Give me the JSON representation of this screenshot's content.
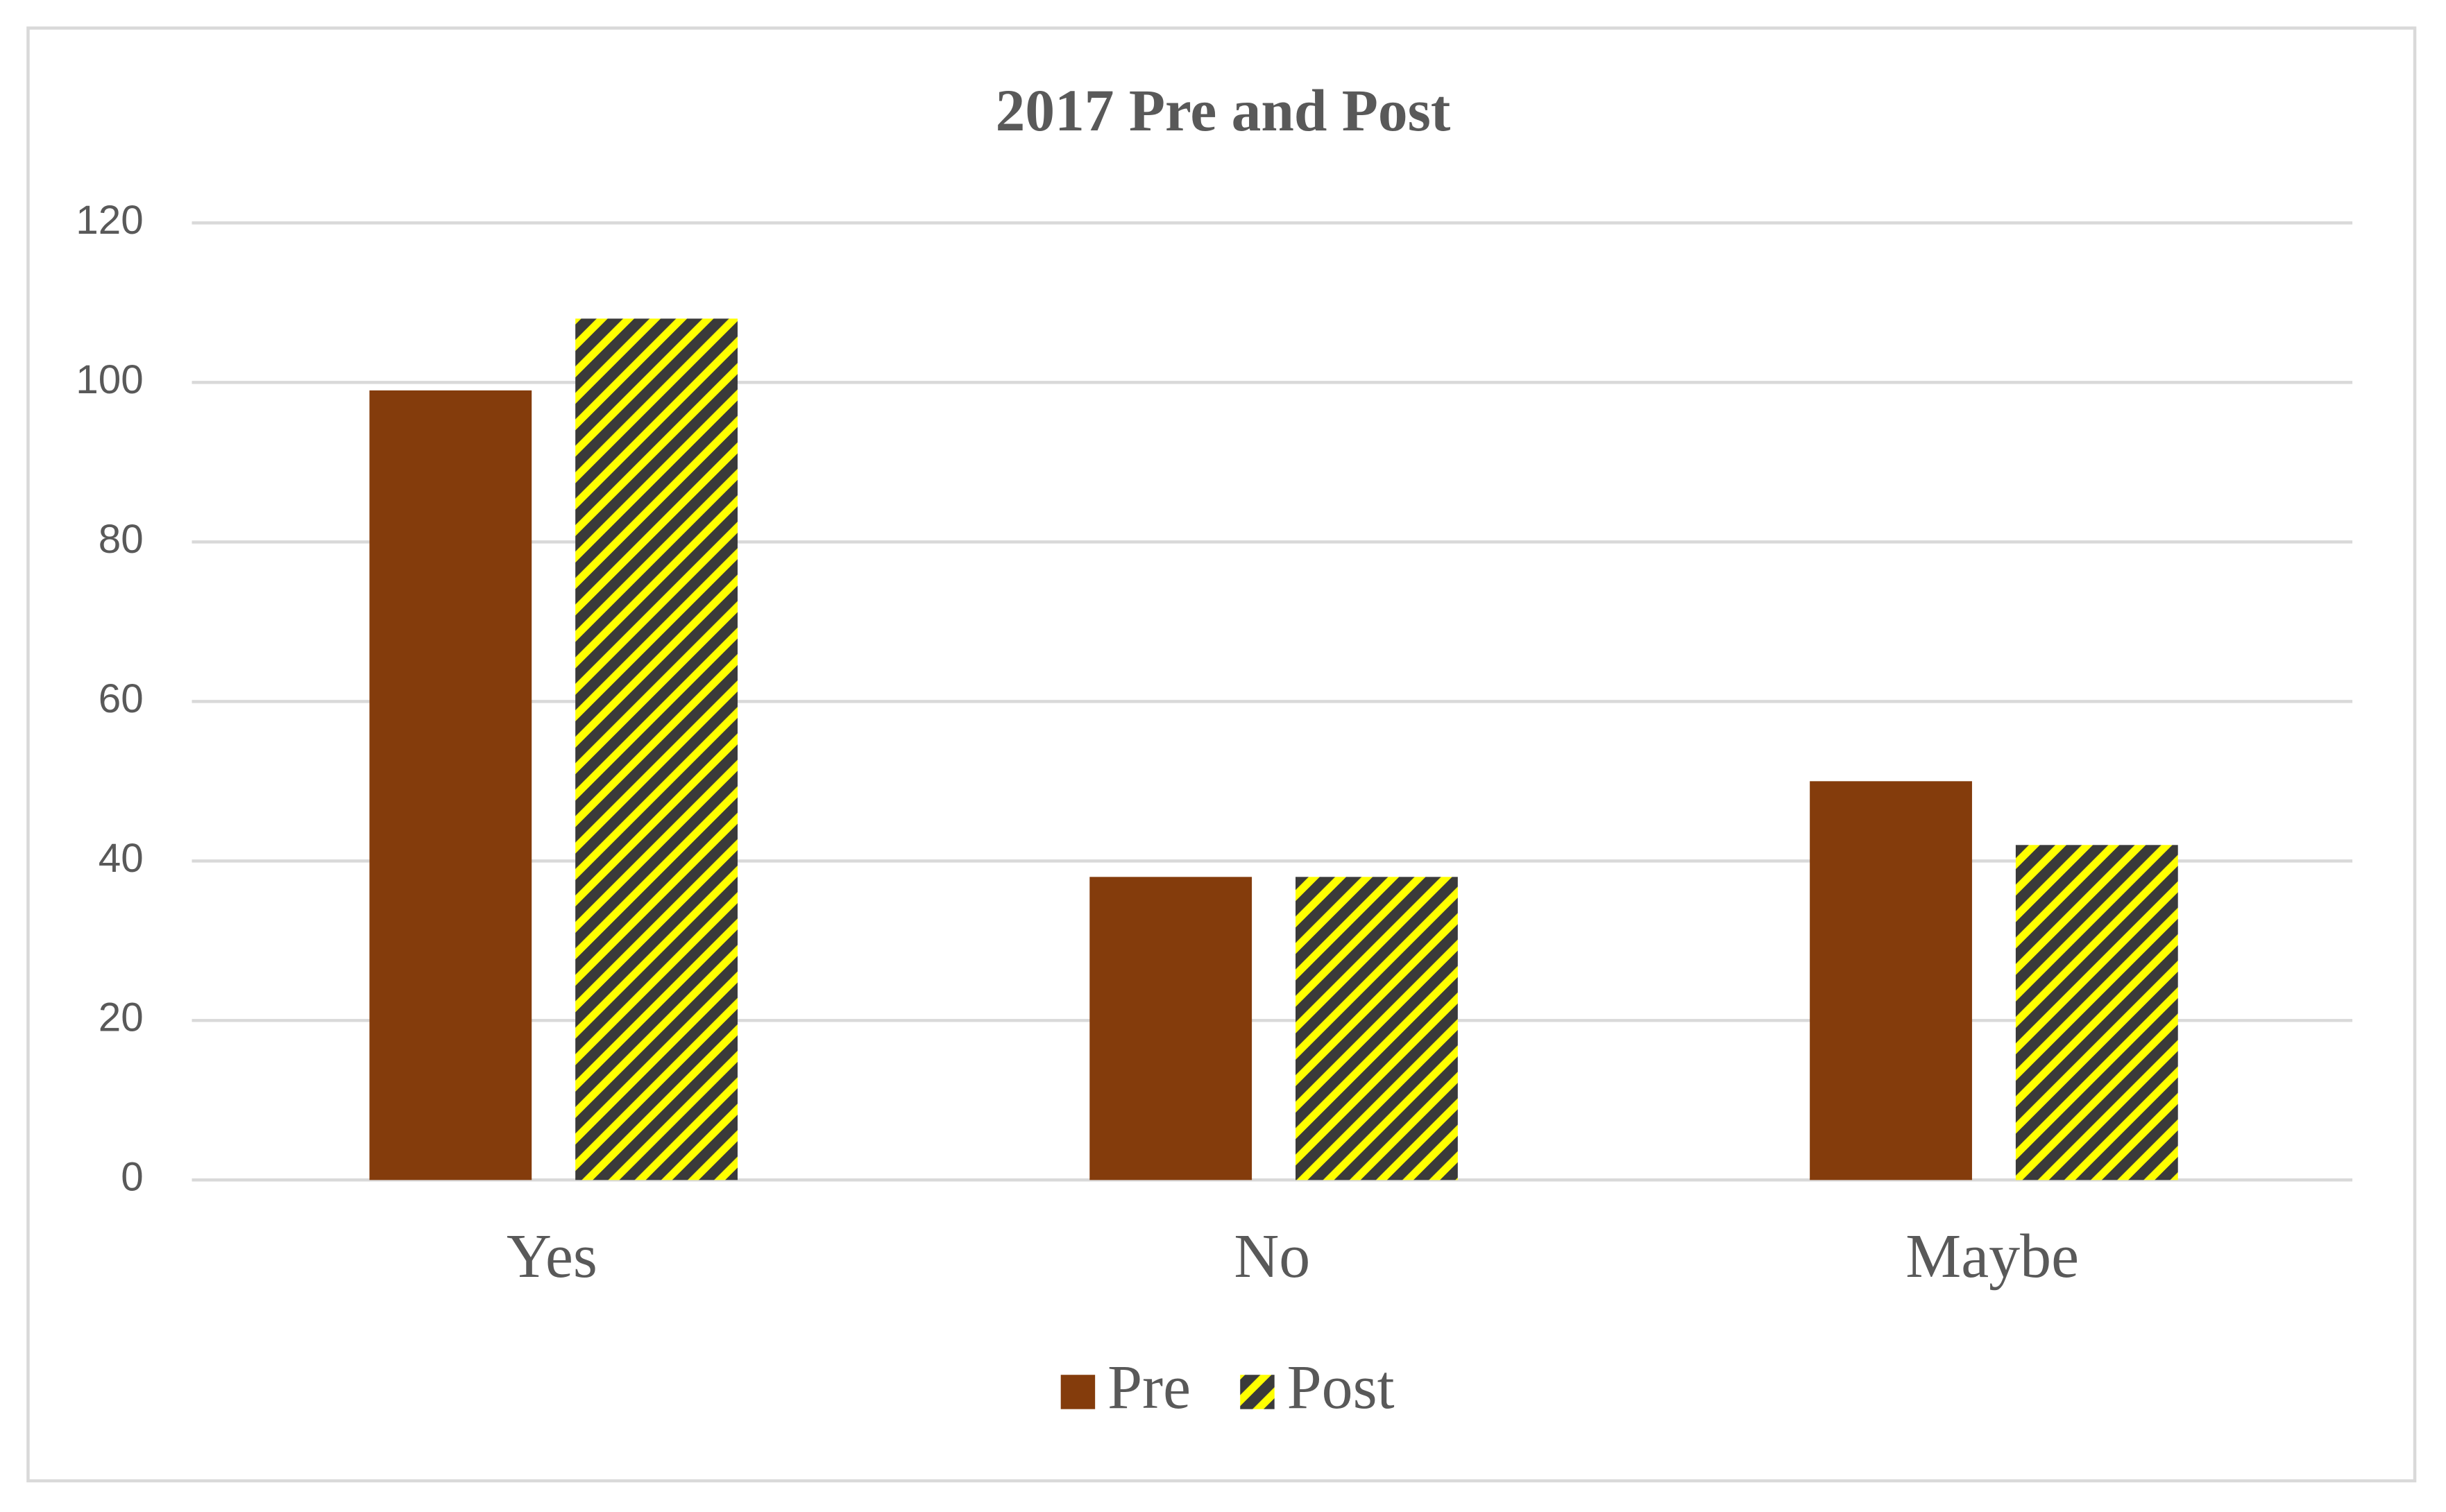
{
  "chart_data": {
    "type": "bar",
    "title": "2017 Pre and Post",
    "categories": [
      "Yes",
      "No",
      "Maybe"
    ],
    "series": [
      {
        "name": "Pre",
        "color": "#843c0c",
        "values": [
          99,
          38,
          50
        ]
      },
      {
        "name": "Post",
        "color": "#ffff00",
        "hatch_color": "#3a3a3a",
        "values": [
          108,
          38,
          42
        ]
      }
    ],
    "ylim": [
      0,
      120
    ],
    "yticks": [
      0,
      20,
      40,
      60,
      80,
      100,
      120
    ],
    "grid": true,
    "legend": "bottom"
  }
}
